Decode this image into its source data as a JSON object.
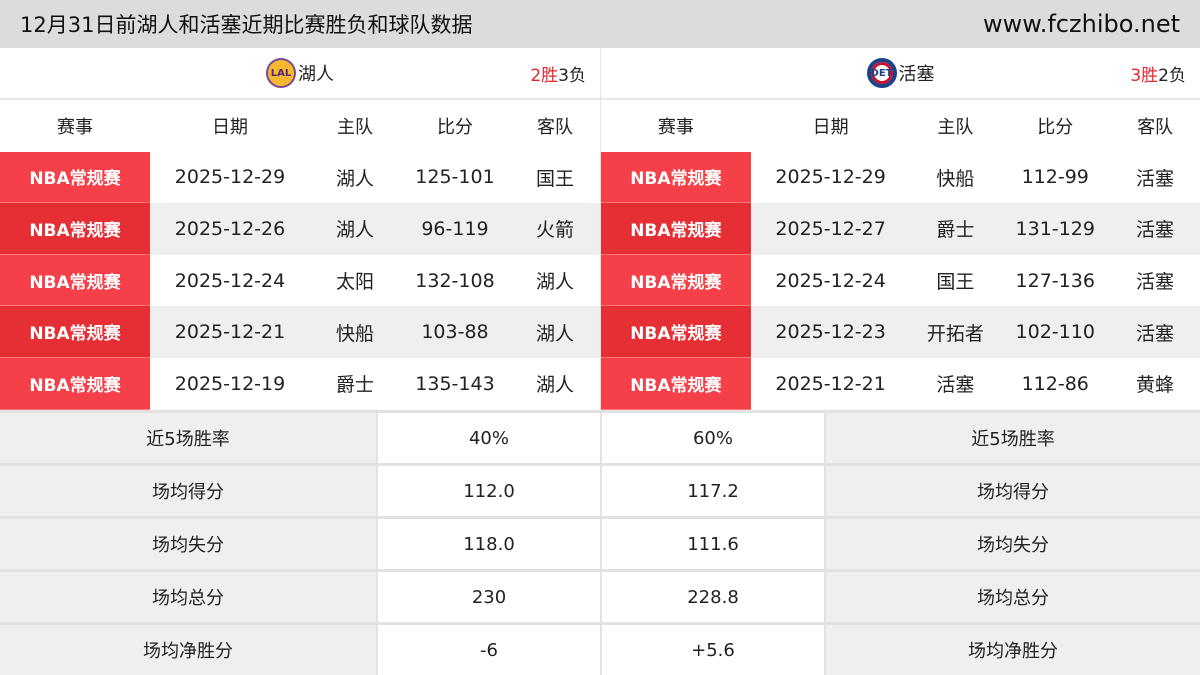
{
  "header": {
    "title": "12月31日前湖人和活塞近期比赛胜负和球队数据",
    "site": "www.fczhibo.net"
  },
  "columns": [
    "赛事",
    "日期",
    "主队",
    "比分",
    "客队"
  ],
  "teams": [
    {
      "name": "湖人",
      "logo": "LAL",
      "wins": "2胜",
      "losses": "3负",
      "games": [
        {
          "event": "NBA常规赛",
          "date": "2025-12-29",
          "home": "湖人",
          "score": "125-101",
          "away": "国王"
        },
        {
          "event": "NBA常规赛",
          "date": "2025-12-26",
          "home": "湖人",
          "score": "96-119",
          "away": "火箭"
        },
        {
          "event": "NBA常规赛",
          "date": "2025-12-24",
          "home": "太阳",
          "score": "132-108",
          "away": "湖人"
        },
        {
          "event": "NBA常规赛",
          "date": "2025-12-21",
          "home": "快船",
          "score": "103-88",
          "away": "湖人"
        },
        {
          "event": "NBA常规赛",
          "date": "2025-12-19",
          "home": "爵士",
          "score": "135-143",
          "away": "湖人"
        }
      ]
    },
    {
      "name": "活塞",
      "logo": "DET",
      "wins": "3胜",
      "losses": "2负",
      "games": [
        {
          "event": "NBA常规赛",
          "date": "2025-12-29",
          "home": "快船",
          "score": "112-99",
          "away": "活塞"
        },
        {
          "event": "NBA常规赛",
          "date": "2025-12-27",
          "home": "爵士",
          "score": "131-129",
          "away": "活塞"
        },
        {
          "event": "NBA常规赛",
          "date": "2025-12-24",
          "home": "国王",
          "score": "127-136",
          "away": "活塞"
        },
        {
          "event": "NBA常规赛",
          "date": "2025-12-23",
          "home": "开拓者",
          "score": "102-110",
          "away": "活塞"
        },
        {
          "event": "NBA常规赛",
          "date": "2025-12-21",
          "home": "活塞",
          "score": "112-86",
          "away": "黄蜂"
        }
      ]
    }
  ],
  "stats": [
    {
      "label": "近5场胜率",
      "left": "40%",
      "right": "60%"
    },
    {
      "label": "场均得分",
      "left": "112.0",
      "right": "117.2"
    },
    {
      "label": "场均失分",
      "left": "118.0",
      "right": "111.6"
    },
    {
      "label": "场均总分",
      "left": "230",
      "right": "228.8"
    },
    {
      "label": "场均净胜分",
      "left": "-6",
      "right": "+5.6"
    }
  ],
  "colors": {
    "event_bg": "#f5404a",
    "event_bg_alt": "#e62f35",
    "win_red": "#e8262d"
  }
}
